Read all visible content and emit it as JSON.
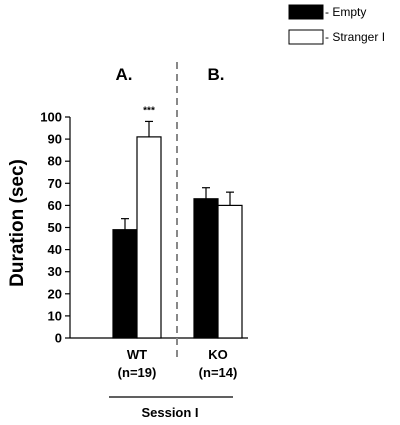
{
  "chart_data": {
    "type": "bar",
    "ylabel": "Duration (sec)",
    "ylim": [
      0,
      100
    ],
    "yticks": [
      0,
      10,
      20,
      30,
      40,
      50,
      60,
      70,
      80,
      90,
      100
    ],
    "categories": [
      {
        "label": "WT",
        "sublabel": "(n=19)"
      },
      {
        "label": "KO",
        "sublabel": "(n=14)"
      }
    ],
    "series": [
      {
        "name": "- Empty",
        "color": "#000000",
        "values": [
          49,
          63
        ],
        "errors": [
          5,
          5
        ]
      },
      {
        "name": "- Stranger I",
        "color": "#ffffff",
        "values": [
          91,
          60
        ],
        "errors": [
          7,
          6
        ]
      }
    ],
    "panels": [
      "A.",
      "B."
    ],
    "annotations": [
      {
        "text": "***",
        "category": 0,
        "series": 1
      }
    ],
    "group_label": "Session I",
    "legend_position": "top-right"
  }
}
